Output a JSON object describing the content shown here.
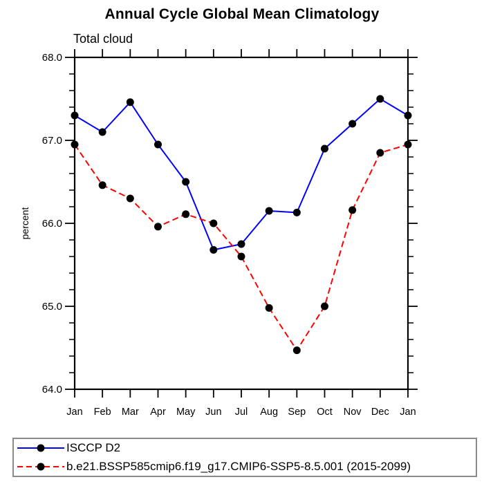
{
  "chart_data": {
    "type": "line",
    "title": "Annual Cycle Global Mean Climatology",
    "subtitle": "Total cloud",
    "ylabel": "percent",
    "xlabel": "",
    "x_categories": [
      "Jan",
      "Feb",
      "Mar",
      "Apr",
      "May",
      "Jun",
      "Jul",
      "Aug",
      "Sep",
      "Oct",
      "Nov",
      "Dec",
      "Jan"
    ],
    "ylim": [
      64.0,
      68.0
    ],
    "ytick_major_labels": [
      "68.0",
      "67.0",
      "66.0",
      "65.0",
      "64.0"
    ],
    "ytick_major_values": [
      68.0,
      67.0,
      66.0,
      65.0,
      64.0
    ],
    "ytick_minor_step": 0.2,
    "grid": false,
    "legend_position": "bottom-left-box",
    "series": [
      {
        "name": "ISCCP D2",
        "color": "#0000ff",
        "line_style": "solid",
        "marker": "filled-circle",
        "marker_color": "#000000",
        "values": [
          67.3,
          67.1,
          67.46,
          66.95,
          66.5,
          65.68,
          65.75,
          66.15,
          66.13,
          66.9,
          67.2,
          67.5,
          67.3
        ]
      },
      {
        "name": "b.e21.BSSP585cmip6.f19_g17.CMIP6-SSP5-8.5.001 (2015-2099)",
        "color": "#ff0000",
        "line_style": "dashed",
        "marker": "filled-circle",
        "marker_color": "#000000",
        "values": [
          66.95,
          66.46,
          66.3,
          65.96,
          66.11,
          66.0,
          65.6,
          64.98,
          64.47,
          65.0,
          66.16,
          66.85,
          66.95
        ]
      }
    ],
    "colors": {
      "background": "#ffffff",
      "axis": "#000000",
      "text": "#000000",
      "legend_border": "#8a8a8a"
    }
  }
}
